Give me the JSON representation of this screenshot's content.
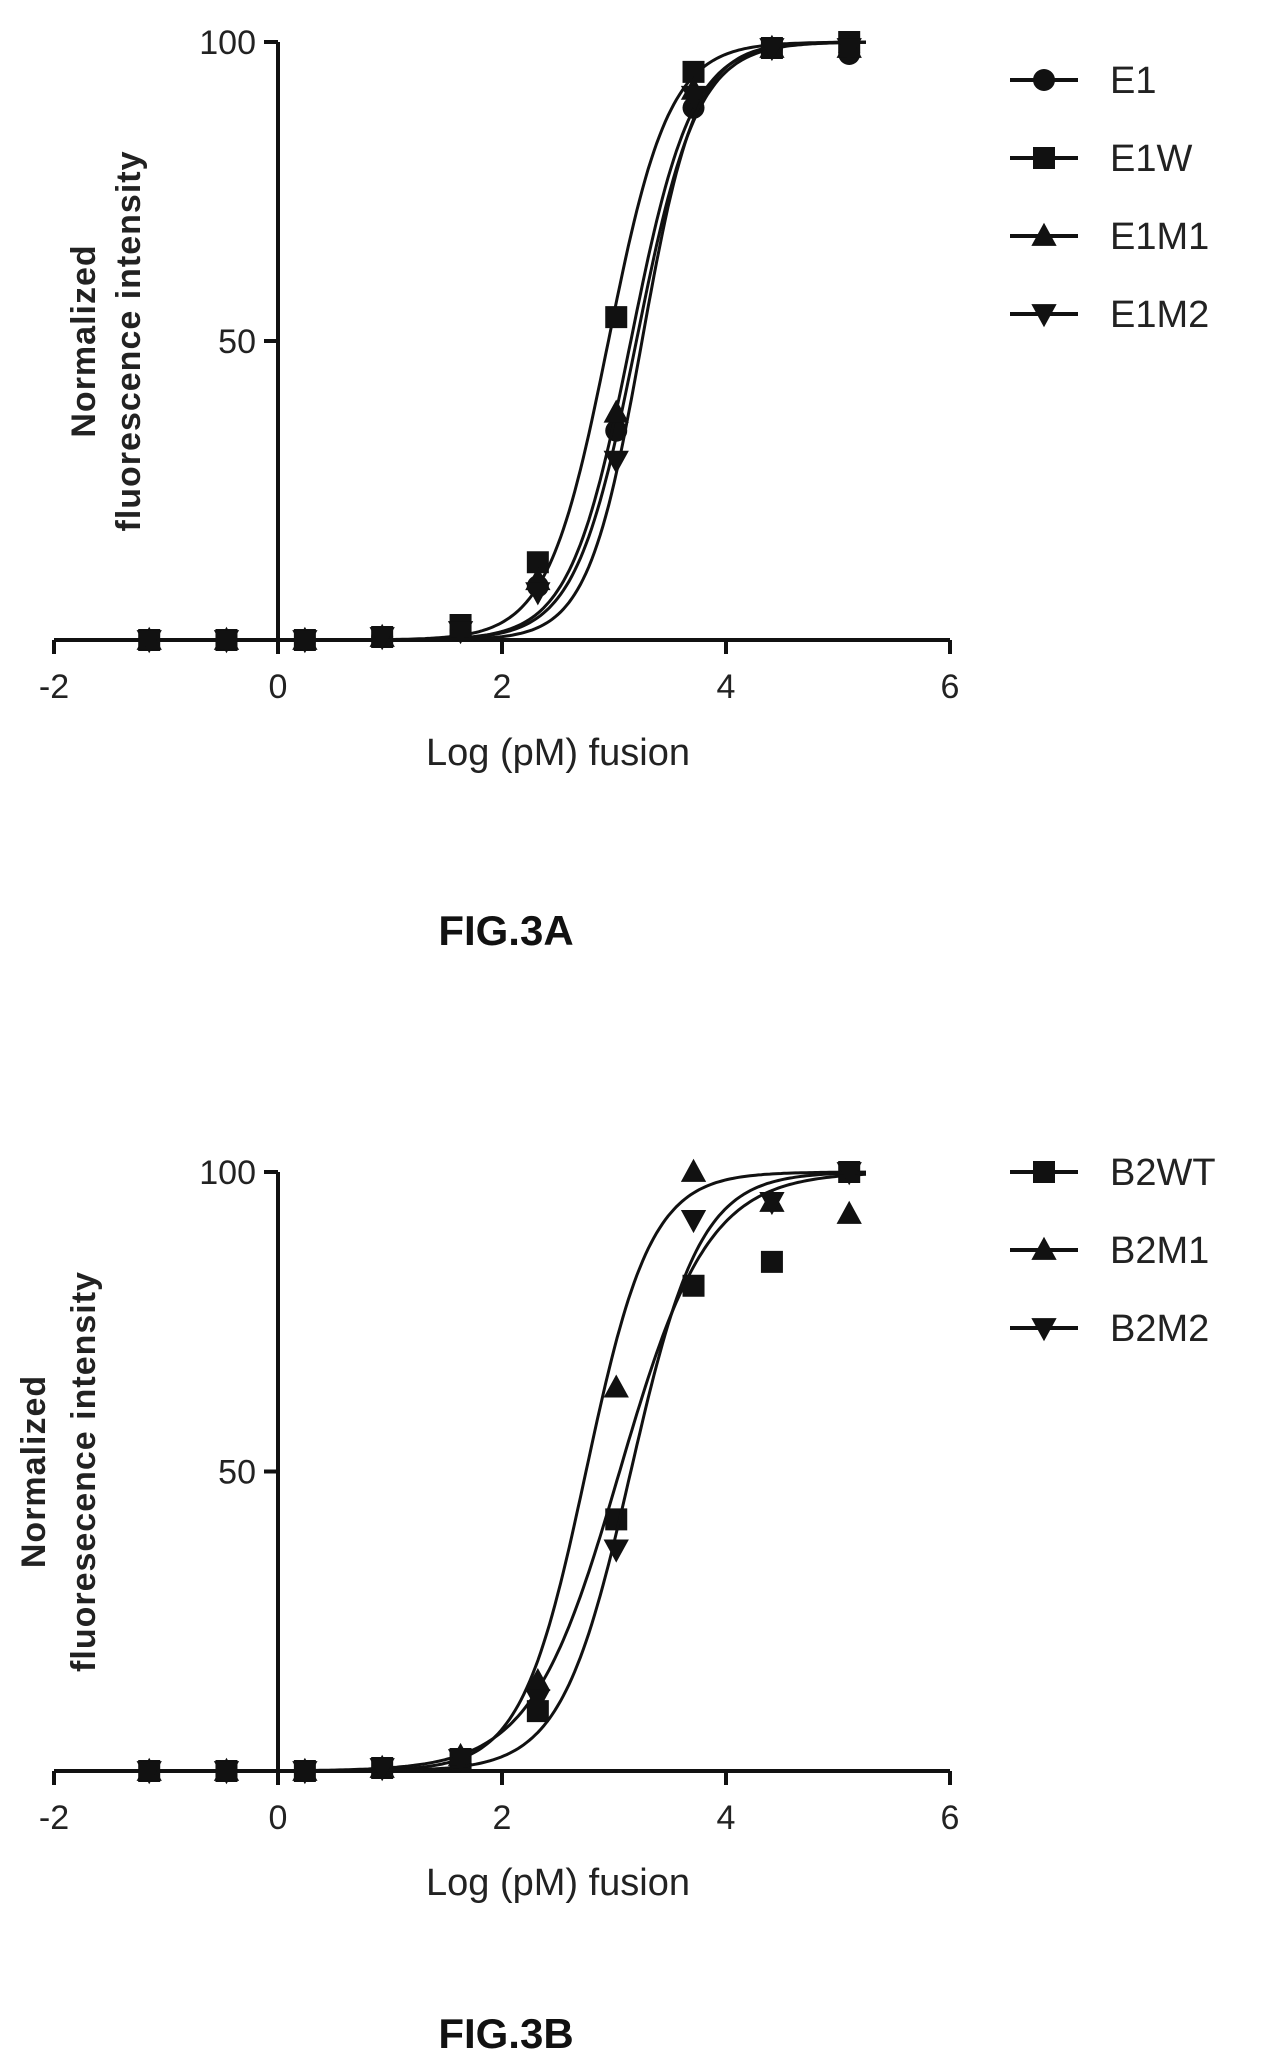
{
  "chart_data": [
    {
      "type": "scatter",
      "caption": "FIG.3A",
      "xlabel": "Log (pM) fusion",
      "ylabel_lines": [
        "Normalized",
        "fluorescence intensity"
      ],
      "xlim": [
        -2,
        6
      ],
      "ylim": [
        0,
        100
      ],
      "xticks": [
        "-2",
        "0",
        "2",
        "4",
        "6"
      ],
      "yticks": [
        "50",
        "100"
      ],
      "legend_position": "right",
      "series": [
        {
          "name": "E1",
          "marker": "circle",
          "ec50": 3.2,
          "hill": 1.6,
          "x": [
            -1.15,
            -0.46,
            0.24,
            0.93,
            1.63,
            2.32,
            3.02,
            3.71,
            4.41,
            5.1
          ],
          "y": [
            0,
            0,
            0,
            0.5,
            1.5,
            9,
            35,
            89,
            99,
            98
          ]
        },
        {
          "name": "E1W",
          "marker": "square",
          "ec50": 2.95,
          "hill": 1.6,
          "x": [
            -1.15,
            -0.46,
            0.24,
            0.93,
            1.63,
            2.32,
            3.02,
            3.71,
            4.41,
            5.1
          ],
          "y": [
            0,
            0,
            0,
            0.5,
            2.5,
            13,
            54,
            95,
            99,
            100
          ]
        },
        {
          "name": "E1M1",
          "marker": "triangle",
          "ec50": 3.15,
          "hill": 1.6,
          "x": [
            -1.15,
            -0.46,
            0.24,
            0.93,
            1.63,
            2.32,
            3.02,
            3.71,
            4.41,
            5.1
          ],
          "y": [
            0,
            0,
            0,
            0.5,
            2,
            10,
            38,
            92,
            99,
            99
          ]
        },
        {
          "name": "E1M2",
          "marker": "triangle-down",
          "ec50": 3.25,
          "hill": 1.8,
          "x": [
            -1.15,
            -0.46,
            0.24,
            0.93,
            1.63,
            2.32,
            3.02,
            3.71,
            4.41,
            5.1
          ],
          "y": [
            0,
            0,
            0,
            0.5,
            1.5,
            8,
            30,
            91,
            99,
            99
          ]
        }
      ]
    },
    {
      "type": "scatter",
      "caption": "FIG.3B",
      "xlabel": "Log (pM) fusion",
      "ylabel_lines": [
        "Normalized",
        "fluoresecence intensity"
      ],
      "xlim": [
        -2,
        6
      ],
      "ylim": [
        0,
        100
      ],
      "xticks": [
        "-2",
        "0",
        "2",
        "4",
        "6"
      ],
      "yticks": [
        "50",
        "100"
      ],
      "legend_position": "right",
      "series": [
        {
          "name": "B2WT",
          "marker": "square",
          "ec50": 3.05,
          "hill": 1.1,
          "x": [
            -1.15,
            -0.46,
            0.24,
            0.93,
            1.63,
            2.32,
            3.02,
            3.71,
            4.41,
            5.1
          ],
          "y": [
            0,
            0,
            0,
            0.5,
            2,
            10,
            42,
            81,
            85,
            100
          ]
        },
        {
          "name": "B2M1",
          "marker": "triangle",
          "ec50": 2.75,
          "hill": 1.5,
          "x": [
            -1.15,
            -0.46,
            0.24,
            0.93,
            1.63,
            2.32,
            3.02,
            3.71,
            4.41,
            5.1
          ],
          "y": [
            0,
            0,
            0,
            0.5,
            2.5,
            15,
            64,
            100,
            95,
            93
          ]
        },
        {
          "name": "B2M2",
          "marker": "triangle-down",
          "ec50": 3.15,
          "hill": 1.4,
          "x": [
            -1.15,
            -0.46,
            0.24,
            0.93,
            1.63,
            2.32,
            3.02,
            3.71,
            4.41,
            5.1
          ],
          "y": [
            0,
            0,
            0,
            0.5,
            2,
            12,
            37,
            92,
            95,
            100
          ]
        }
      ]
    }
  ]
}
